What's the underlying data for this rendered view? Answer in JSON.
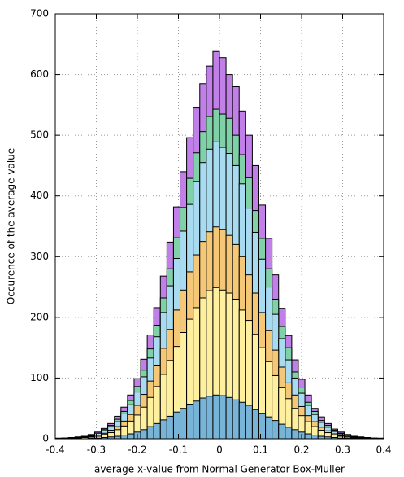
{
  "chart_data": {
    "type": "histogram",
    "xlabel": "average x-value from Normal Generator Box-Muller",
    "ylabel": "Occurence of the average value",
    "bins": [
      -0.4,
      -0.384,
      -0.368,
      -0.352,
      -0.336,
      -0.32,
      -0.304,
      -0.288,
      -0.272,
      -0.256,
      -0.24,
      -0.224,
      -0.208,
      -0.192,
      -0.176,
      -0.16,
      -0.144,
      -0.128,
      -0.112,
      -0.096,
      -0.08,
      -0.064,
      -0.048,
      -0.032,
      -0.016,
      0,
      0.016,
      0.032,
      0.048,
      0.064,
      0.08,
      0.096,
      0.112,
      0.128,
      0.144,
      0.16,
      0.176,
      0.192,
      0.208,
      0.224,
      0.24,
      0.256,
      0.272,
      0.288,
      0.304,
      0.32,
      0.336,
      0.352,
      0.368,
      0.384,
      0.4
    ],
    "series": [
      {
        "color": "#c080e8",
        "values": [
          1,
          1,
          2,
          3,
          4,
          7,
          11,
          17,
          25,
          37,
          52,
          72,
          99,
          131,
          171,
          216,
          268,
          324,
          382,
          440,
          496,
          545,
          585,
          614,
          638,
          628,
          600,
          580,
          540,
          500,
          450,
          385,
          330,
          270,
          215,
          170,
          130,
          98,
          72,
          50,
          36,
          25,
          16,
          11,
          7,
          4,
          3,
          2,
          1,
          1
        ]
      },
      {
        "color": "#80d0a8",
        "values": [
          0,
          1,
          1,
          2,
          4,
          6,
          9,
          15,
          22,
          32,
          45,
          63,
          86,
          113,
          148,
          187,
          232,
          280,
          331,
          381,
          429,
          471,
          506,
          531,
          543,
          535,
          528,
          500,
          468,
          430,
          376,
          330,
          280,
          230,
          185,
          150,
          110,
          85,
          60,
          45,
          30,
          22,
          14,
          9,
          6,
          4,
          2,
          1,
          1,
          0
        ]
      },
      {
        "color": "#a8daf0",
        "values": [
          0,
          1,
          1,
          2,
          3,
          5,
          9,
          13,
          20,
          28,
          41,
          56,
          77,
          102,
          133,
          168,
          208,
          252,
          297,
          342,
          386,
          424,
          455,
          477,
          489,
          480,
          470,
          450,
          420,
          380,
          340,
          296,
          250,
          205,
          165,
          130,
          100,
          75,
          55,
          40,
          27,
          19,
          12,
          8,
          5,
          3,
          2,
          1,
          1,
          0
        ]
      },
      {
        "color": "#f5c878",
        "values": [
          0,
          1,
          1,
          1,
          2,
          4,
          6,
          9,
          14,
          20,
          29,
          40,
          55,
          73,
          95,
          120,
          149,
          180,
          212,
          245,
          275,
          303,
          325,
          341,
          349,
          345,
          335,
          320,
          300,
          270,
          240,
          208,
          178,
          146,
          118,
          92,
          72,
          53,
          38,
          28,
          19,
          13,
          8,
          5,
          3,
          2,
          1,
          1,
          0,
          0
        ]
      },
      {
        "color": "#fff0a0",
        "values": [
          0,
          0,
          1,
          1,
          2,
          3,
          4,
          7,
          10,
          15,
          21,
          29,
          39,
          52,
          68,
          86,
          106,
          129,
          152,
          175,
          197,
          216,
          232,
          244,
          249,
          245,
          240,
          230,
          212,
          195,
          172,
          150,
          127,
          104,
          84,
          66,
          50,
          38,
          28,
          20,
          14,
          10,
          6,
          4,
          3,
          1,
          1,
          0,
          0,
          0
        ]
      },
      {
        "color": "#78b4d8",
        "values": [
          0,
          0,
          0,
          0,
          0,
          1,
          1,
          2,
          3,
          4,
          6,
          8,
          11,
          15,
          20,
          25,
          31,
          37,
          44,
          50,
          57,
          62,
          67,
          70,
          72,
          71,
          68,
          64,
          60,
          55,
          48,
          42,
          36,
          30,
          24,
          19,
          15,
          11,
          8,
          6,
          4,
          3,
          2,
          1,
          1,
          0,
          0,
          0,
          0,
          0
        ]
      }
    ],
    "xlim": [
      -0.4,
      0.4
    ],
    "xticks": [
      -0.4,
      -0.3,
      -0.2,
      -0.1,
      0,
      0.1,
      0.2,
      0.3,
      0.4
    ],
    "ylim": [
      0,
      700
    ],
    "yticks": [
      0,
      100,
      200,
      300,
      400,
      500,
      600,
      700
    ],
    "grid": true
  }
}
